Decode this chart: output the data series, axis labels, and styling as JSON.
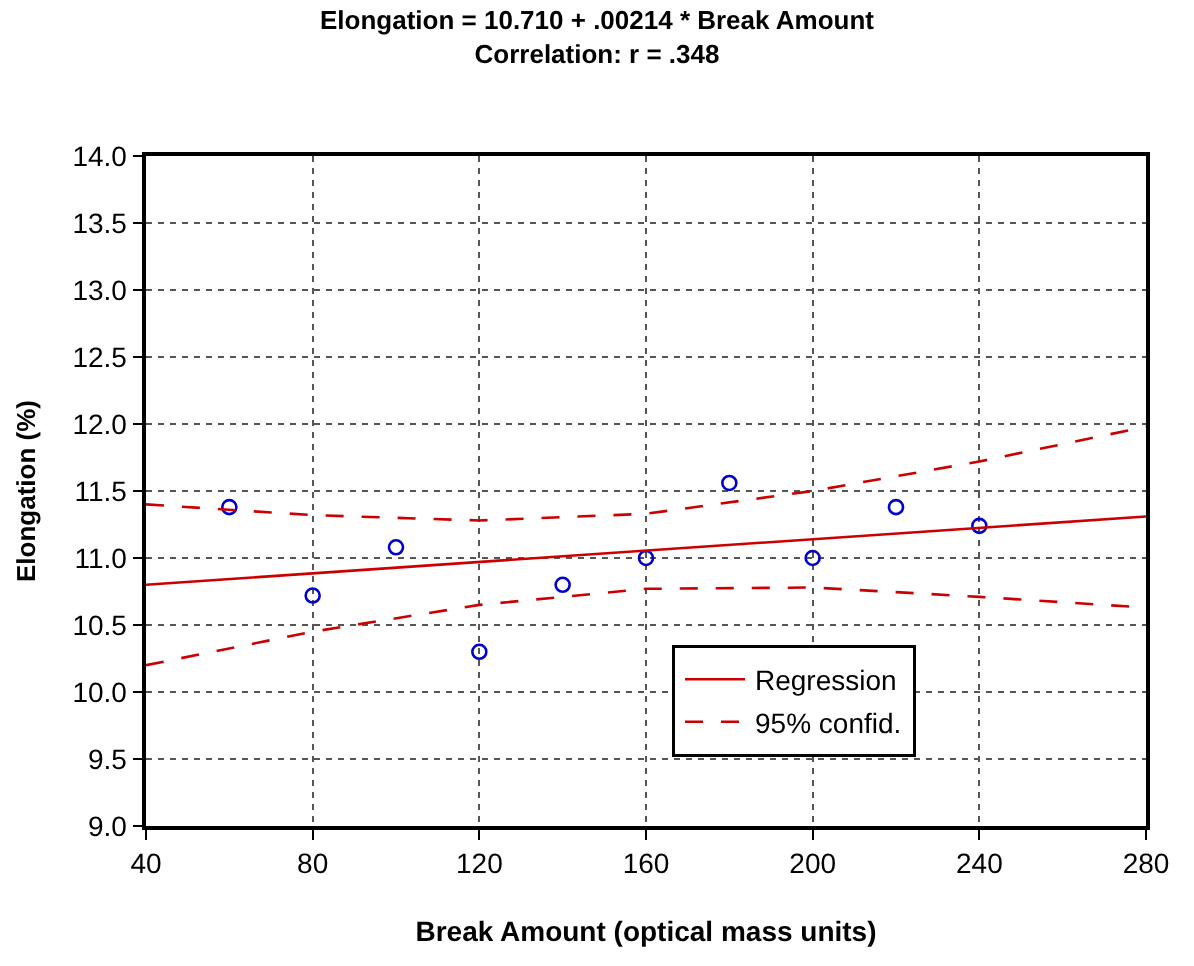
{
  "chart_data": {
    "type": "scatter",
    "title": "Elongation = 10.710 + .00214 * Break Amount",
    "subtitle": "Correlation: r = .348",
    "xlabel": "Break Amount (optical mass units)",
    "ylabel": "Elongation (%)",
    "xlim": [
      40,
      280
    ],
    "xticks": [
      40,
      80,
      120,
      160,
      200,
      240,
      280
    ],
    "ylim": [
      9.0,
      14.0
    ],
    "yticks": [
      {
        "value": 9.0,
        "label": "9.0"
      },
      {
        "value": 9.5,
        "label": "9.5"
      },
      {
        "value": 10.0,
        "label": "10.0"
      },
      {
        "value": 10.5,
        "label": "10.5"
      },
      {
        "value": 11.0,
        "label": "11.0"
      },
      {
        "value": 11.5,
        "label": "11.5"
      },
      {
        "value": 12.0,
        "label": "12.0"
      },
      {
        "value": 12.5,
        "label": "12.5"
      },
      {
        "value": 13.0,
        "label": "13.0"
      },
      {
        "value": 13.5,
        "label": "13.5"
      },
      {
        "value": 14.0,
        "label": "14.0"
      }
    ],
    "grid": true,
    "legend": "bottom right",
    "marker": "circle",
    "series": [
      {
        "color": "#0000cc",
        "x": [
          60,
          80,
          100,
          120,
          140,
          160,
          180,
          200,
          220,
          240
        ],
        "values": [
          11.38,
          10.72,
          11.08,
          10.3,
          10.8,
          11.0,
          11.56,
          11.0,
          11.38,
          11.24
        ]
      },
      {
        "type": "line",
        "name": "Regression",
        "color": "#cc0000",
        "line_style": "solid",
        "marker": "none",
        "x": [
          40,
          280
        ],
        "values": [
          10.8,
          11.31
        ]
      },
      {
        "type": "line",
        "name": "95% confid.",
        "color": "#cc0000",
        "line_style": "dashed",
        "marker": "none",
        "x": [
          40,
          80,
          120,
          160,
          200,
          240,
          280
        ],
        "values": [
          11.4,
          11.32,
          11.28,
          11.33,
          11.5,
          11.72,
          11.98
        ]
      },
      {
        "type": "line",
        "color": "#cc0000",
        "line_style": "dashed",
        "marker": "none",
        "x": [
          40,
          80,
          120,
          160,
          200,
          240,
          280
        ],
        "values": [
          10.2,
          10.45,
          10.65,
          10.77,
          10.78,
          10.71,
          10.63
        ]
      }
    ]
  }
}
